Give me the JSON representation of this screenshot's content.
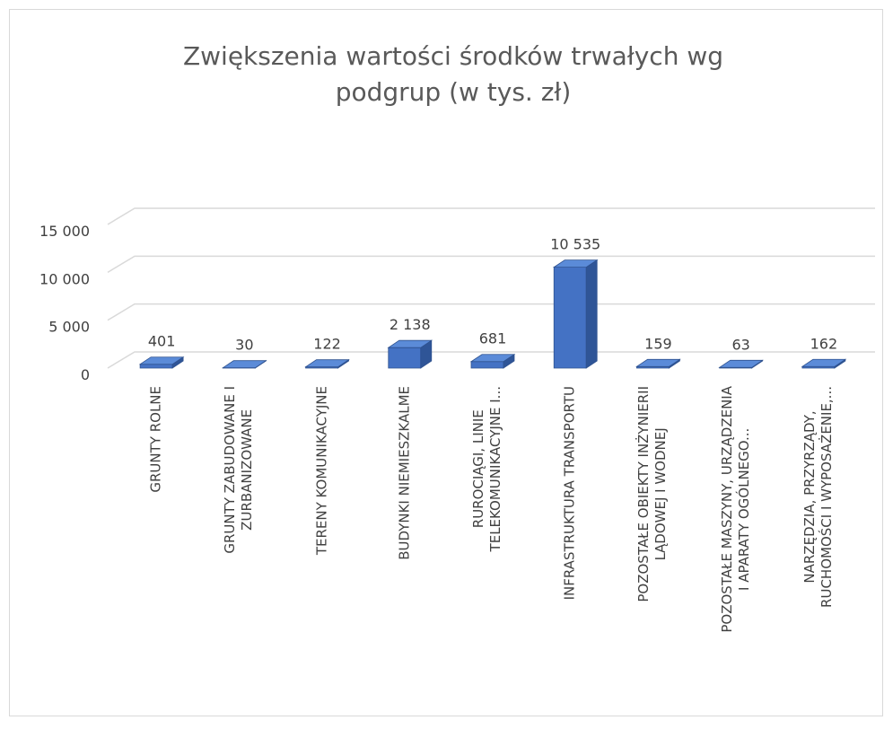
{
  "chart_data": {
    "type": "bar3d",
    "title": [
      "Zwiększenia wartości środków trwałych wg",
      "podgrup (w tys. zł)"
    ],
    "categories": [
      "GRUNTY ROLNE",
      "GRUNTY ZABUDOWANE I\nZURBANIZOWANE",
      "TERENY KOMUNIKACYJNE",
      "BUDYNKI NIEMIESZKALME",
      "RUROCIĄGI, LINIE\nTELEKOMUNIKACYJNE I...",
      "INFRASTRUKTURA TRANSPORTU",
      "POZOSTAŁE OBIEKTY INŻYNIERII\nLĄDOWEJ I WODNEJ",
      "POZOSTAŁE MASZYNY, URZĄDZENIA\nI APARATY OGÓLNEGO...",
      "NARZĘDZIA, PRZYRZĄDY,\nRUCHOMOŚCI I WYPOSAŻENIE,..."
    ],
    "values": [
      401,
      30,
      122,
      2138,
      681,
      10535,
      159,
      63,
      162
    ],
    "value_labels": [
      "401",
      "30",
      "122",
      "2 138",
      "681",
      "10 535",
      "159",
      "63",
      "162"
    ],
    "color": "#4472c4",
    "ylim": [
      0,
      15000
    ],
    "yticks": [
      0,
      {
        "value": 5000,
        "label": "5 000"
      },
      {
        "value": 10000,
        "label": "10 000"
      },
      {
        "value": 15000,
        "label": "15 000"
      }
    ],
    "grid": true
  }
}
